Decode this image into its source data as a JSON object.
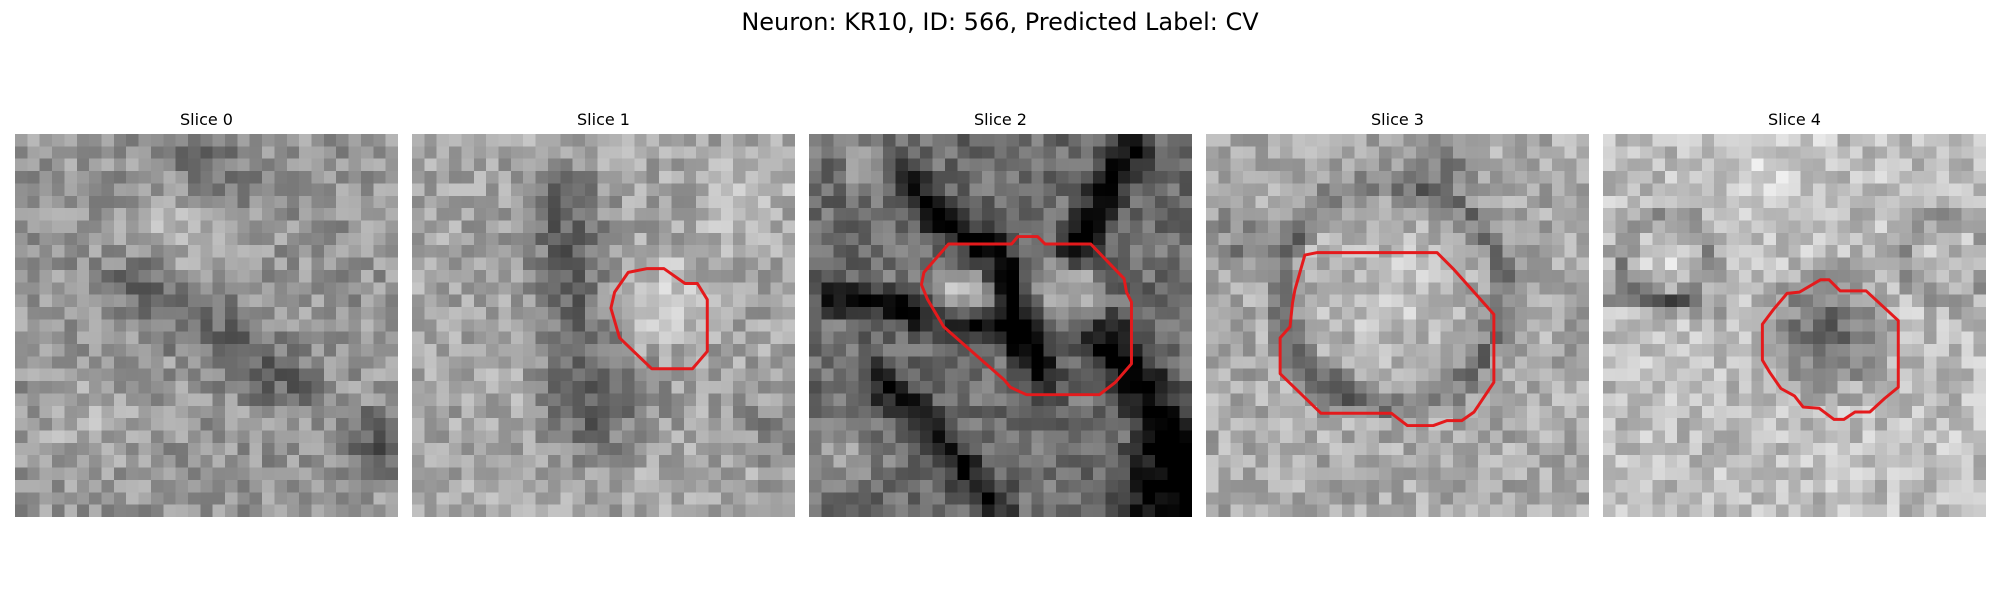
{
  "figure": {
    "title": "Neuron: KR10, ID: 566, Predicted Label: CV"
  },
  "panels": [
    {
      "title": "Slice 0",
      "has_contour": false,
      "base_gray": 150
    },
    {
      "title": "Slice 1",
      "has_contour": true,
      "base_gray": 165
    },
    {
      "title": "Slice 2",
      "has_contour": true,
      "base_gray": 110
    },
    {
      "title": "Slice 3",
      "has_contour": true,
      "base_gray": 170
    },
    {
      "title": "Slice 4",
      "has_contour": true,
      "base_gray": 190
    }
  ],
  "colors": {
    "contour": "#e41a1c",
    "background": "#ffffff"
  }
}
